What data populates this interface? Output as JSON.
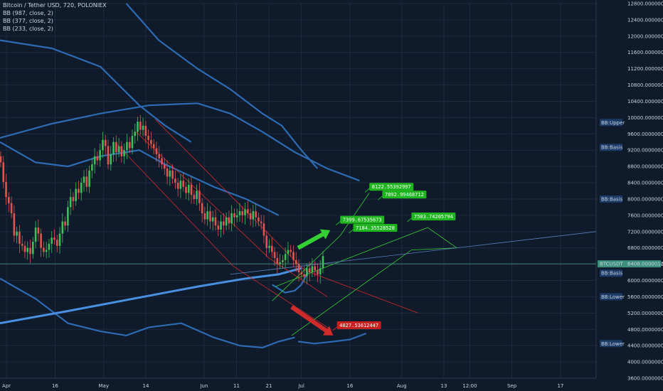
{
  "header": {
    "title": "Bitcoin / Tether USD, 720, POLONIEX",
    "indicators": [
      "BB (987, close, 2)",
      "BB (377, close, 2)",
      "BB (233, close, 2)"
    ]
  },
  "colors": {
    "background": "#0f1a2b",
    "grid": "#1f2b3e",
    "up": "#3fbf5a",
    "down": "#e05550",
    "bb_line": "#2d6bb3",
    "bb_main": "#4a90e2",
    "green_channel": "#35d035",
    "red_channel": "#d02b2b",
    "trend_line": "#5b7fbf",
    "price_line": "#4aa08a"
  },
  "chart_data": {
    "type": "candlestick",
    "symbol": "BTCUSDT",
    "ylim": [
      3600,
      12800
    ],
    "y_ticks": [
      "12800.00000000",
      "12400.00000000",
      "12000.00000000",
      "11600.00000000",
      "11200.00000000",
      "10800.00000000",
      "10400.00000000",
      "10000.00000000",
      "9600.00000000",
      "9200.00000000",
      "8800.00000000",
      "8400.00000000",
      "8000.00000000",
      "7600.00000000",
      "7200.00000000",
      "6800.00000000",
      "6400.00000000",
      "6000.00000000",
      "5600.00000000",
      "5200.00000000",
      "4800.00000000",
      "4400.00000000",
      "4000.00000000",
      "3600.00000000"
    ],
    "y_tick_values": [
      12800,
      12400,
      12000,
      11600,
      11200,
      10800,
      10400,
      10000,
      9600,
      9200,
      8800,
      8400,
      8000,
      7600,
      7200,
      6800,
      6400,
      6000,
      5600,
      5200,
      4800,
      4400,
      4000,
      3600
    ],
    "x_ticks": [
      "Apr",
      "16",
      "May",
      "14",
      "Jun",
      "11",
      "21",
      "Jul",
      "16",
      "Aug",
      "13",
      "12:00",
      "Sep",
      "17"
    ],
    "x_tick_days": [
      31,
      46,
      61,
      74,
      92,
      102,
      112,
      122,
      137,
      153,
      166,
      174,
      187,
      202
    ],
    "x_range_days": [
      29,
      213
    ],
    "last_price": "6408.00000170",
    "last_price_value": 6408,
    "last_price_label": "BTCUSDT",
    "candles_close": [
      8900,
      8420,
      8050,
      7900,
      7650,
      7100,
      7200,
      6900,
      6850,
      6700,
      6800,
      6650,
      6950,
      7300,
      7150,
      6800,
      6700,
      6750,
      6900,
      7050,
      7000,
      6850,
      7150,
      7450,
      7350,
      7800,
      8050,
      7950,
      8250,
      8150,
      8400,
      8550,
      8300,
      8700,
      8850,
      9050,
      8950,
      9200,
      9450,
      9300,
      8850,
      9100,
      9400,
      9150,
      9300,
      9050,
      9200,
      9400,
      9250,
      9550,
      9650,
      9900,
      9700,
      9800,
      9550,
      9450,
      9350,
      9250,
      9100,
      9000,
      8850,
      8750,
      8550,
      8700,
      8500,
      8400,
      8250,
      8450,
      8300,
      8150,
      8350,
      8100,
      8000,
      8200,
      7900,
      7650,
      7500,
      7700,
      7450,
      7550,
      7350,
      7250,
      7450,
      7350,
      7550,
      7400,
      7650,
      7550,
      7600,
      7700,
      7600,
      7750,
      7650,
      7500,
      7700,
      7550,
      7450,
      7400,
      7100,
      6800,
      6850,
      6700,
      6550,
      6400,
      6450,
      6500,
      6650,
      6750,
      6700,
      6500,
      6400,
      6200,
      6150,
      6100,
      6300,
      6200,
      6350,
      6250,
      6150,
      6300,
      6600
    ],
    "bb_lines": [
      {
        "name": "upper-987-a",
        "points": [
          [
            29,
            11900
          ],
          [
            45,
            11700
          ],
          [
            60,
            11250
          ],
          [
            72,
            10300
          ],
          [
            80,
            9800
          ],
          [
            88,
            9400
          ]
        ]
      },
      {
        "name": "upper-987-b",
        "points": [
          [
            68,
            12800
          ],
          [
            78,
            11900
          ],
          [
            90,
            11200
          ],
          [
            100,
            10700
          ],
          [
            110,
            10100
          ],
          [
            116,
            9800
          ],
          [
            122,
            9200
          ],
          [
            127,
            8750
          ]
        ]
      },
      {
        "name": "basis-377",
        "points": [
          [
            29,
            9500
          ],
          [
            45,
            9850
          ],
          [
            60,
            10100
          ],
          [
            75,
            10300
          ],
          [
            90,
            10350
          ],
          [
            100,
            10100
          ],
          [
            110,
            9650
          ],
          [
            120,
            9150
          ],
          [
            130,
            8750
          ],
          [
            140,
            8450
          ]
        ]
      },
      {
        "name": "basis-233",
        "points": [
          [
            29,
            9400
          ],
          [
            40,
            8900
          ],
          [
            50,
            8800
          ],
          [
            60,
            9050
          ],
          [
            72,
            9200
          ],
          [
            80,
            8850
          ],
          [
            95,
            8300
          ],
          [
            105,
            8000
          ],
          [
            115,
            7600
          ]
        ]
      },
      {
        "name": "lower-233",
        "points": [
          [
            29,
            6050
          ],
          [
            40,
            5550
          ],
          [
            50,
            4950
          ],
          [
            60,
            4750
          ],
          [
            68,
            4650
          ],
          [
            75,
            4850
          ],
          [
            85,
            4950
          ],
          [
            95,
            4600
          ],
          [
            103,
            4400
          ],
          [
            110,
            4350
          ],
          [
            115,
            4500
          ],
          [
            120,
            4600
          ]
        ]
      },
      {
        "name": "lower-377",
        "points": [
          [
            121,
            4500
          ],
          [
            126,
            4450
          ],
          [
            132,
            4500
          ],
          [
            137,
            4550
          ],
          [
            142,
            4700
          ]
        ]
      },
      {
        "name": "bb233-lower-curve",
        "points": [
          [
            113,
            5900
          ],
          [
            117,
            5700
          ],
          [
            120,
            5750
          ],
          [
            122,
            5900
          ],
          [
            124,
            6200
          ]
        ]
      }
    ],
    "bb_main_line": [
      [
        29,
        4950
      ],
      [
        50,
        5250
      ],
      [
        70,
        5550
      ],
      [
        90,
        5850
      ],
      [
        105,
        6050
      ],
      [
        115,
        6150
      ],
      [
        122,
        6300
      ]
    ],
    "trend_line": [
      [
        100,
        6150
      ],
      [
        213,
        7200
      ]
    ],
    "red_channel_lines": [
      [
        [
          77,
          9950
        ],
        [
          123,
          6250
        ],
        [
          158,
          5200
        ]
      ],
      [
        [
          65,
          9350
        ],
        [
          101,
          6350
        ],
        [
          131,
          4800
        ]
      ],
      [
        [
          71,
          9650
        ],
        [
          112,
          6550
        ],
        [
          130,
          5600
        ]
      ]
    ],
    "green_channel_lines": [
      [
        [
          113,
          5500
        ],
        [
          134,
          7100
        ],
        [
          143,
          8150
        ]
      ],
      [
        [
          119,
          4650
        ],
        [
          156,
          6750
        ],
        [
          170,
          6800
        ]
      ],
      [
        [
          114,
          5850
        ],
        [
          161,
          7300
        ],
        [
          170,
          6800
        ]
      ]
    ],
    "arrows": [
      {
        "name": "green-up-arrow",
        "color": "green",
        "from": [
          121,
          6800
        ],
        "to": [
          129,
          7150
        ]
      },
      {
        "name": "red-down-arrow",
        "color": "red",
        "from": [
          119,
          5350
        ],
        "to": [
          130,
          4750
        ]
      }
    ],
    "annotations": [
      {
        "text": "8122.55392997",
        "color": "green",
        "x": 143,
        "y": 8310
      },
      {
        "text": "7892.99468712",
        "color": "green",
        "x": 147,
        "y": 8120
      },
      {
        "text": "7399.67535673",
        "color": "green",
        "x": 134,
        "y": 7500
      },
      {
        "text": "7184.35528528",
        "color": "green",
        "x": 138,
        "y": 7300
      },
      {
        "text": "7503.74205794",
        "color": "green",
        "x": 156,
        "y": 7580
      },
      {
        "text": "4827.53612447",
        "color": "red",
        "x": 133,
        "y": 4910
      }
    ],
    "axis_badges": [
      {
        "text": "BB:Upper",
        "y": 9880
      },
      {
        "text": "BB:Basis",
        "y": 9270
      },
      {
        "text": "BB:Basis",
        "y": 8000
      },
      {
        "text": "BB:Basis",
        "y": 6180
      },
      {
        "text": "BB:Lower",
        "y": 5600
      },
      {
        "text": "BB:Lower",
        "y": 4450
      }
    ]
  }
}
